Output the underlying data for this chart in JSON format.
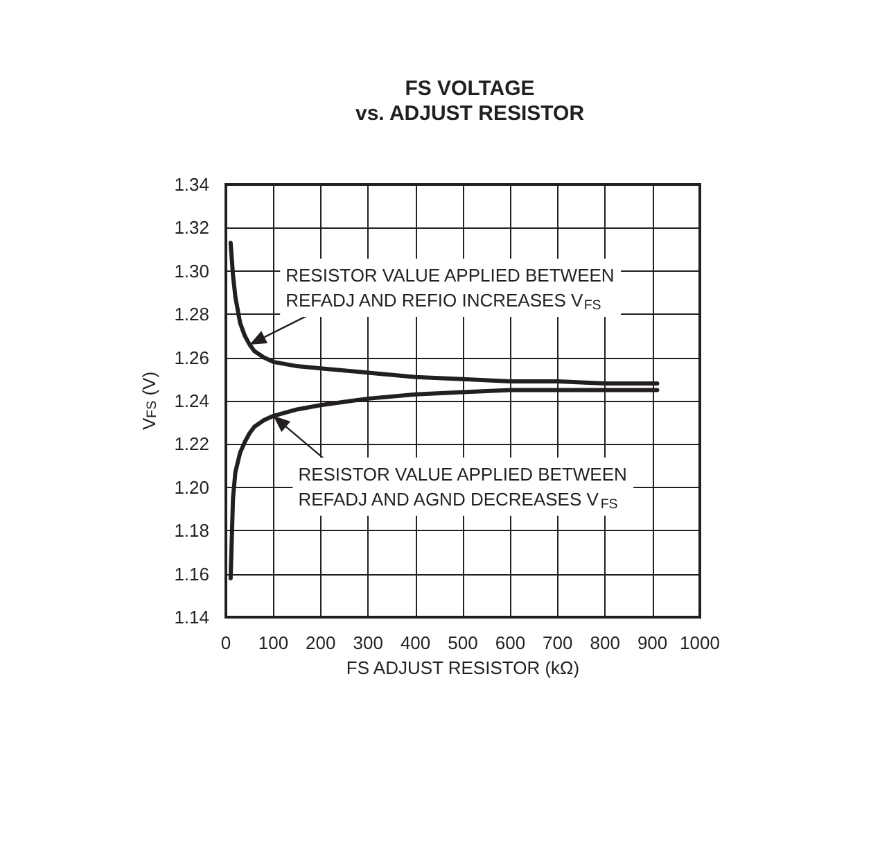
{
  "chart_data": {
    "type": "line",
    "title": "FS VOLTAGE\nvs. ADJUST RESISTOR",
    "xlabel": "FS ADJUST RESISTOR (kΩ)",
    "ylabel": "V$_{FS}$ (V)",
    "xlim": [
      0,
      1000
    ],
    "xticks": [
      0,
      100,
      200,
      300,
      400,
      500,
      600,
      700,
      800,
      900,
      1000
    ],
    "ylim": [
      1.14,
      1.34
    ],
    "yticks": [
      {
        "value": 1.14,
        "label": "1.14"
      },
      {
        "value": 1.16,
        "label": "1.16"
      },
      {
        "value": 1.18,
        "label": "1.18"
      },
      {
        "value": 1.2,
        "label": "1.20"
      },
      {
        "value": 1.22,
        "label": "1.22"
      },
      {
        "value": 1.24,
        "label": "1.24"
      },
      {
        "value": 1.26,
        "label": "1.26"
      },
      {
        "value": 1.28,
        "label": "1.28"
      },
      {
        "value": 1.3,
        "label": "1.30"
      },
      {
        "value": 1.32,
        "label": "1.32"
      },
      {
        "value": 1.34,
        "label": "1.34"
      }
    ],
    "grid": true,
    "series": [
      {
        "color": "#231f20",
        "x": [
          10,
          15,
          20,
          30,
          40,
          50,
          60,
          80,
          100,
          150,
          200,
          300,
          400,
          500,
          600,
          700,
          800,
          910
        ],
        "values": [
          1.313,
          1.298,
          1.288,
          1.276,
          1.27,
          1.266,
          1.263,
          1.26,
          1.258,
          1.256,
          1.255,
          1.253,
          1.251,
          1.25,
          1.249,
          1.249,
          1.248,
          1.248
        ]
      },
      {
        "color": "#231f20",
        "x": [
          10,
          15,
          20,
          30,
          40,
          50,
          60,
          80,
          100,
          150,
          200,
          300,
          400,
          500,
          600,
          700,
          800,
          910
        ],
        "values": [
          1.158,
          1.195,
          1.207,
          1.216,
          1.221,
          1.225,
          1.228,
          1.231,
          1.233,
          1.236,
          1.238,
          1.241,
          1.243,
          1.244,
          1.245,
          1.245,
          1.245,
          1.245
        ]
      }
    ],
    "annotations": [
      {
        "text": "RESISTOR VALUE APPLIED BETWEEN\nREFADJ AND REFIO INCREASES V$_{FS}$",
        "x": 50,
        "y": 1.266
      },
      {
        "text": "RESISTOR VALUE APPLIED BETWEEN\nREFADJ AND AGND DECREASES V$_{FS}$",
        "x": 100,
        "y": 1.233
      }
    ]
  }
}
